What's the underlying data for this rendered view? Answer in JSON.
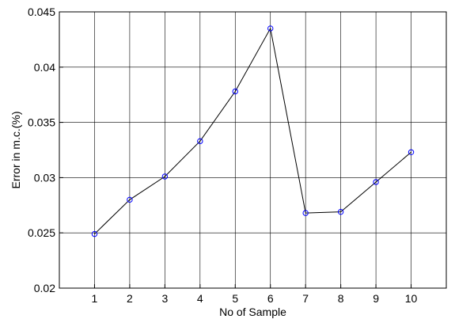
{
  "chart_data": {
    "type": "line",
    "title": "",
    "xlabel": "No of Sample",
    "ylabel": "Error in m.c.(%)",
    "x": [
      1,
      2,
      3,
      4,
      5,
      6,
      7,
      8,
      9,
      10
    ],
    "series": [
      {
        "values": [
          0.0249,
          0.028,
          0.0301,
          0.0333,
          0.0378,
          0.0435,
          0.0268,
          0.0269,
          0.0296,
          0.0323
        ],
        "color": "#000000",
        "marker": "circle",
        "marker_color": "#0000ff"
      }
    ],
    "xlim": [
      0,
      11
    ],
    "ylim": [
      0.02,
      0.045
    ],
    "xticks": [
      1,
      2,
      3,
      4,
      5,
      6,
      7,
      8,
      9,
      10
    ],
    "yticks": [
      0.02,
      0.025,
      0.03,
      0.035,
      0.04,
      0.045
    ],
    "ytick_labels": [
      "0.02",
      "0.025",
      "0.03",
      "0.035",
      "0.04",
      "0.045"
    ],
    "grid": true,
    "legend": "none"
  }
}
